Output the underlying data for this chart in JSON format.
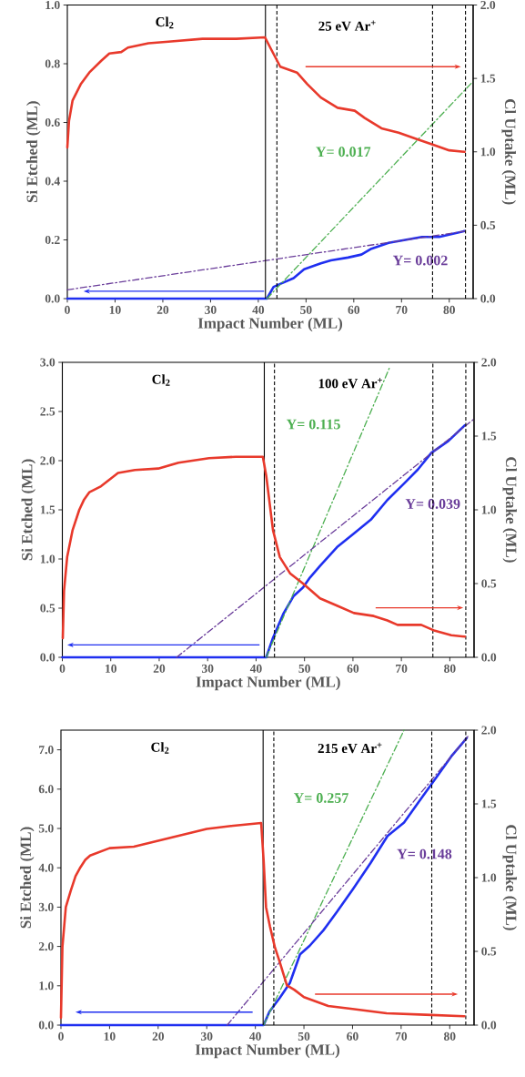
{
  "chart_data": [
    {
      "type": "line",
      "xlabel": "Impact Number (ML)",
      "ylabel": "Si Etched (ML)",
      "y2label": "Cl Uptake (ML)",
      "xlim": [
        0,
        85
      ],
      "xticks": [
        0,
        10,
        20,
        30,
        40,
        50,
        60,
        70,
        80
      ],
      "ylim": [
        0,
        1
      ],
      "yticks": [
        {
          "value": 0,
          "label": "0.0"
        },
        {
          "value": 0.2,
          "label": "0.2"
        },
        {
          "value": 0.4,
          "label": "0.4"
        },
        {
          "value": 0.6,
          "label": "0.6"
        },
        {
          "value": 0.8,
          "label": "0.8"
        },
        {
          "value": 1,
          "label": "1.0"
        }
      ],
      "y2lim": [
        0,
        2
      ],
      "y2ticks": [
        {
          "value": 0,
          "label": "0.0"
        },
        {
          "value": 0.5,
          "label": "0.5"
        },
        {
          "value": 1,
          "label": "1.0"
        },
        {
          "value": 1.5,
          "label": "1.5"
        },
        {
          "value": 2,
          "label": "2.0"
        }
      ],
      "annotations": [
        "Cl$_{2}$",
        "25 eV Ar$^{+}$"
      ],
      "series": [
        {
          "axis": "y2",
          "color": "#e8392b",
          "x": [
            0,
            0.35,
            1.1,
            2.8,
            4.6,
            7.1,
            8.8,
            11.3,
            12.7,
            17,
            21.2,
            28.3,
            35.4,
            41.4,
            42.5,
            44.6,
            48.1,
            50.3,
            53.1,
            56.6,
            60.2,
            62.3,
            65.8,
            69.4,
            72.9,
            76.5,
            80,
            83.2
          ],
          "values": [
            1.03,
            1.21,
            1.35,
            1.46,
            1.54,
            1.62,
            1.67,
            1.68,
            1.71,
            1.74,
            1.75,
            1.77,
            1.77,
            1.78,
            1.71,
            1.58,
            1.54,
            1.46,
            1.37,
            1.3,
            1.28,
            1.23,
            1.16,
            1.13,
            1.09,
            1.05,
            1.01,
            1.0
          ]
        },
        {
          "axis": "y",
          "color": "#1f2ff0",
          "x": [
            0,
            41.8,
            43.2,
            44.6,
            47.4,
            49.6,
            53.1,
            55.2,
            58.8,
            61.6,
            63.7,
            67.3,
            70.8,
            74.3,
            77.9,
            83.2
          ],
          "values": [
            0,
            0,
            0.04,
            0.05,
            0.07,
            0.1,
            0.12,
            0.13,
            0.14,
            0.15,
            0.17,
            0.19,
            0.2,
            0.21,
            0.21,
            0.23
          ]
        },
        {
          "axis": "y",
          "name": "Y= 0.017",
          "color": "#4caf50",
          "line_style": "dashed",
          "x": [
            41.8,
            85
          ],
          "values": [
            0,
            0.74
          ]
        },
        {
          "axis": "y",
          "name": "Y= 0.002",
          "color": "#6a3d9a",
          "line_style": "dashed",
          "x": [
            0,
            83.5
          ],
          "values": [
            0.03,
            0.23
          ]
        }
      ],
      "ref_lines": [
        {
          "axis": "x",
          "value": 41.5,
          "color": "#000000",
          "line_style": "solid"
        },
        {
          "axis": "x",
          "value": 43.9,
          "color": "#000000",
          "line_style": "dashed"
        },
        {
          "axis": "x",
          "value": 76.5,
          "color": "#000000",
          "line_style": "dashed"
        },
        {
          "axis": "x",
          "value": 83.4,
          "color": "#000000",
          "line_style": "dashed"
        }
      ]
    },
    {
      "type": "line",
      "xlabel": "Impact Number (ML)",
      "ylabel": "Si Etched (ML)",
      "y2label": "Cl Uptake (ML)",
      "xlim": [
        0,
        85
      ],
      "xticks": [
        0,
        10,
        20,
        30,
        40,
        50,
        60,
        70,
        80
      ],
      "ylim": [
        0,
        3
      ],
      "yticks": [
        {
          "value": 0,
          "label": "0.0"
        },
        {
          "value": 0.5,
          "label": "0.5"
        },
        {
          "value": 1,
          "label": "1.0"
        },
        {
          "value": 1.5,
          "label": "1.5"
        },
        {
          "value": 2,
          "label": "2.0"
        },
        {
          "value": 2.5,
          "label": "2.5"
        },
        {
          "value": 3,
          "label": "3.0"
        }
      ],
      "y2lim": [
        0,
        2
      ],
      "y2ticks": [
        {
          "value": 0,
          "label": "0.0"
        },
        {
          "value": 0.5,
          "label": "0.5"
        },
        {
          "value": 1,
          "label": "1.0"
        },
        {
          "value": 1.5,
          "label": "1.5"
        },
        {
          "value": 2,
          "label": "2.0"
        }
      ],
      "annotations": [
        "Cl$_{2}$",
        "100 eV Ar$^{+}$"
      ],
      "series": [
        {
          "axis": "y2",
          "color": "#e8392b",
          "x": [
            0.1,
            0.35,
            1.0,
            2.1,
            3.5,
            4.5,
            5.6,
            8.0,
            11.5,
            15,
            19.8,
            24,
            30.3,
            35.8,
            41.4,
            42.1,
            43.5,
            44.9,
            47,
            49.7,
            53.2,
            56.7,
            60.2,
            64.3,
            67.1,
            69.2,
            74.1,
            76.9,
            80.3,
            83.1
          ],
          "values": [
            0.13,
            0.45,
            0.68,
            0.86,
            1.0,
            1.07,
            1.12,
            1.16,
            1.25,
            1.27,
            1.28,
            1.32,
            1.35,
            1.36,
            1.36,
            1.23,
            0.86,
            0.68,
            0.57,
            0.5,
            0.4,
            0.35,
            0.3,
            0.28,
            0.25,
            0.22,
            0.22,
            0.18,
            0.15,
            0.14
          ]
        },
        {
          "axis": "y",
          "color": "#1f2ff0",
          "x": [
            0,
            42.1,
            43.5,
            45.6,
            47.7,
            49.7,
            51.1,
            53.2,
            56.7,
            60.2,
            63.7,
            67.1,
            70.6,
            73.4,
            76.2,
            79.7,
            83.1
          ],
          "values": [
            0,
            0,
            0.2,
            0.44,
            0.62,
            0.71,
            0.81,
            0.93,
            1.12,
            1.26,
            1.4,
            1.6,
            1.77,
            1.91,
            2.08,
            2.2,
            2.36
          ]
        },
        {
          "axis": "y",
          "name": "Y= 0.115",
          "color": "#4caf50",
          "line_style": "dashed",
          "x": [
            42.1,
            67.5
          ],
          "values": [
            0,
            2.94
          ]
        },
        {
          "axis": "y",
          "name": "Y= 0.039",
          "color": "#6a3d9a",
          "line_style": "dashed",
          "x": [
            23.6,
            84.9
          ],
          "values": [
            0,
            2.42
          ]
        }
      ],
      "ref_lines": [
        {
          "axis": "x",
          "value": 41.7,
          "color": "#000000",
          "line_style": "solid"
        },
        {
          "axis": "x",
          "value": 43.8,
          "color": "#000000",
          "line_style": "dashed"
        },
        {
          "axis": "x",
          "value": 76.5,
          "color": "#000000",
          "line_style": "dashed"
        },
        {
          "axis": "x",
          "value": 83.3,
          "color": "#000000",
          "line_style": "dashed"
        }
      ]
    },
    {
      "type": "line",
      "xlabel": "Impact Number (ML)",
      "ylabel": "Si Etched (ML)",
      "y2label": "Cl Uptake (ML)",
      "xlim": [
        0,
        85
      ],
      "xticks": [
        0,
        10,
        20,
        30,
        40,
        50,
        60,
        70,
        80
      ],
      "ylim": [
        0,
        7.5
      ],
      "yticks": [
        {
          "value": 0,
          "label": "0.0"
        },
        {
          "value": 1,
          "label": "1.0"
        },
        {
          "value": 2,
          "label": "2.0"
        },
        {
          "value": 3,
          "label": "3.0"
        },
        {
          "value": 4,
          "label": "4.0"
        },
        {
          "value": 5,
          "label": "5.0"
        },
        {
          "value": 6,
          "label": "6.0"
        },
        {
          "value": 7,
          "label": "7.0"
        }
      ],
      "y2lim": [
        0,
        2
      ],
      "y2ticks": [
        {
          "value": 0,
          "label": "0.0"
        },
        {
          "value": 0.5,
          "label": "0.5"
        },
        {
          "value": 1,
          "label": "1.0"
        },
        {
          "value": 1.5,
          "label": "1.5"
        },
        {
          "value": 2,
          "label": "2.0"
        }
      ],
      "annotations": [
        "Cl$_{2}$",
        "215 eV Ar$^{+}$"
      ],
      "series": [
        {
          "axis": "y2",
          "color": "#e8392b",
          "x": [
            0,
            0.3,
            1,
            2,
            3,
            4,
            5,
            6,
            10,
            15,
            20,
            25,
            30,
            35,
            41.2,
            41.7,
            42.2,
            43,
            44,
            45,
            46.5,
            48,
            50,
            55,
            60,
            67,
            75,
            83
          ],
          "values": [
            0.05,
            0.53,
            0.8,
            0.91,
            1.01,
            1.07,
            1.12,
            1.15,
            1.2,
            1.21,
            1.25,
            1.29,
            1.33,
            1.35,
            1.37,
            1.12,
            0.8,
            0.67,
            0.53,
            0.43,
            0.27,
            0.24,
            0.19,
            0.13,
            0.11,
            0.08,
            0.07,
            0.06
          ]
        },
        {
          "axis": "y",
          "color": "#1f2ff0",
          "x": [
            0,
            41.7,
            42.9,
            45,
            47.1,
            49.2,
            51.2,
            54,
            56.8,
            60.2,
            63.7,
            67.2,
            70.6,
            74.1,
            77.6,
            80.3,
            83.5
          ],
          "values": [
            0,
            0,
            0.34,
            0.69,
            1.07,
            1.8,
            2.02,
            2.41,
            2.88,
            3.48,
            4.12,
            4.81,
            5.15,
            5.76,
            6.36,
            6.83,
            7.3
          ]
        },
        {
          "axis": "y",
          "name": "Y= 0.257",
          "color": "#4caf50",
          "line_style": "dashed",
          "x": [
            41.7,
            70.6
          ],
          "values": [
            0,
            7.5
          ]
        },
        {
          "axis": "y",
          "name": "Y= 0.148",
          "color": "#6a3d9a",
          "line_style": "dashed",
          "x": [
            34.2,
            83.8
          ],
          "values": [
            0,
            7.35
          ]
        }
      ],
      "ref_lines": [
        {
          "axis": "x",
          "value": 41.6,
          "color": "#000000",
          "line_style": "solid"
        },
        {
          "axis": "x",
          "value": 43.8,
          "color": "#000000",
          "line_style": "dashed"
        },
        {
          "axis": "x",
          "value": 76.3,
          "color": "#000000",
          "line_style": "dashed"
        },
        {
          "axis": "x",
          "value": 83.3,
          "color": "#000000",
          "line_style": "dashed"
        }
      ]
    }
  ]
}
